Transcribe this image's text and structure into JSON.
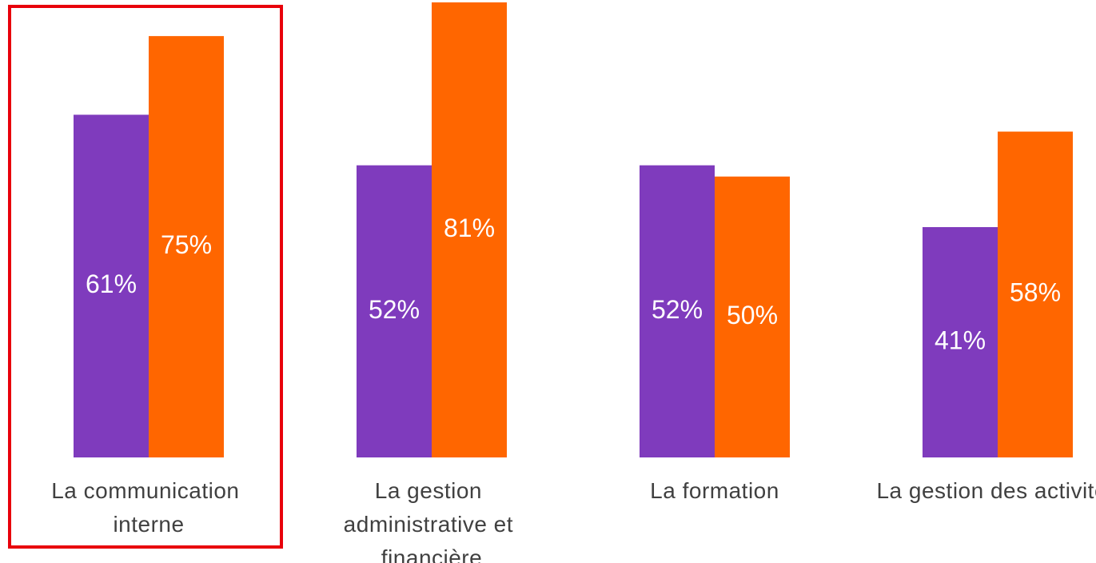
{
  "chart_data": {
    "type": "bar",
    "categories": [
      "La communication interne",
      "La gestion administrative et financière",
      "La formation",
      "La gestion des activités"
    ],
    "series": [
      {
        "color": "#7f3bbd",
        "values": [
          61,
          52,
          52,
          41
        ],
        "value_labels": [
          "61%",
          "52%",
          "52%",
          "41%"
        ]
      },
      {
        "color": "#ff6600",
        "values": [
          75,
          81,
          50,
          58
        ],
        "value_labels": [
          "75%",
          "81%",
          "50%",
          "58%"
        ]
      }
    ],
    "ylim": [
      0,
      80
    ]
  }
}
